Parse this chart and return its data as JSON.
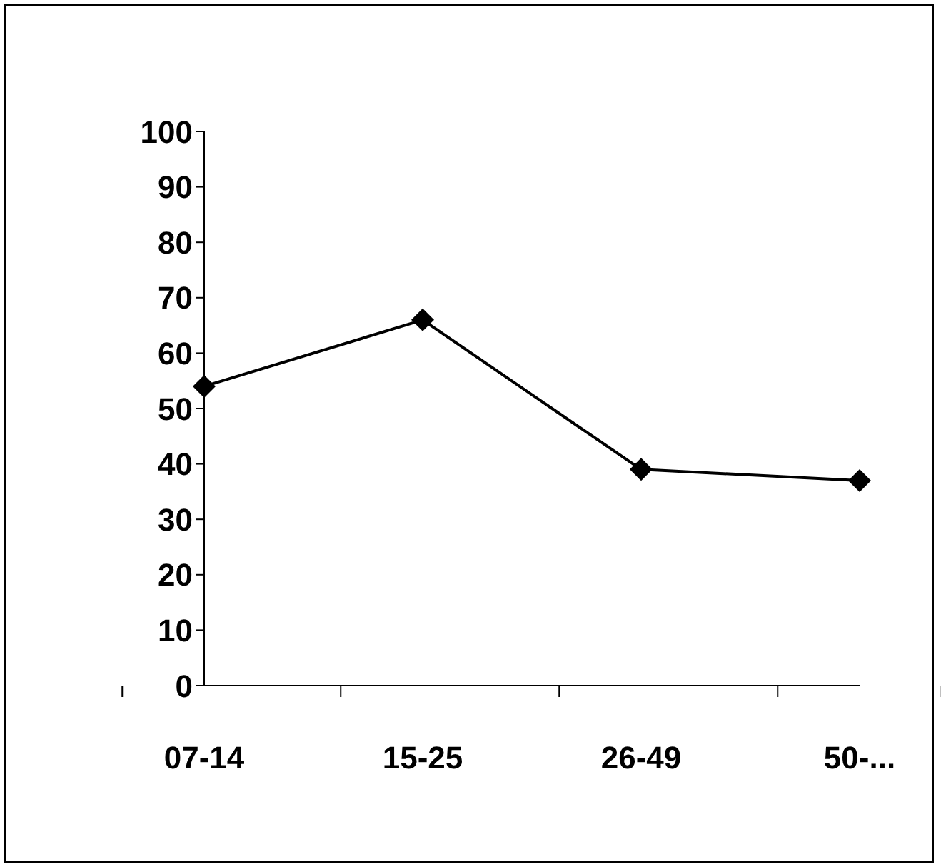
{
  "chart_data": {
    "type": "line",
    "categories": [
      "07-14",
      "15-25",
      "26-49",
      "50-..."
    ],
    "values": [
      54,
      66,
      39,
      37
    ],
    "color": "#000000",
    "marker": "diamond",
    "ylim": [
      0,
      100
    ],
    "yticks": [
      0,
      10,
      20,
      30,
      40,
      50,
      60,
      70,
      80,
      90,
      100
    ],
    "grid": false,
    "legend": false
  }
}
